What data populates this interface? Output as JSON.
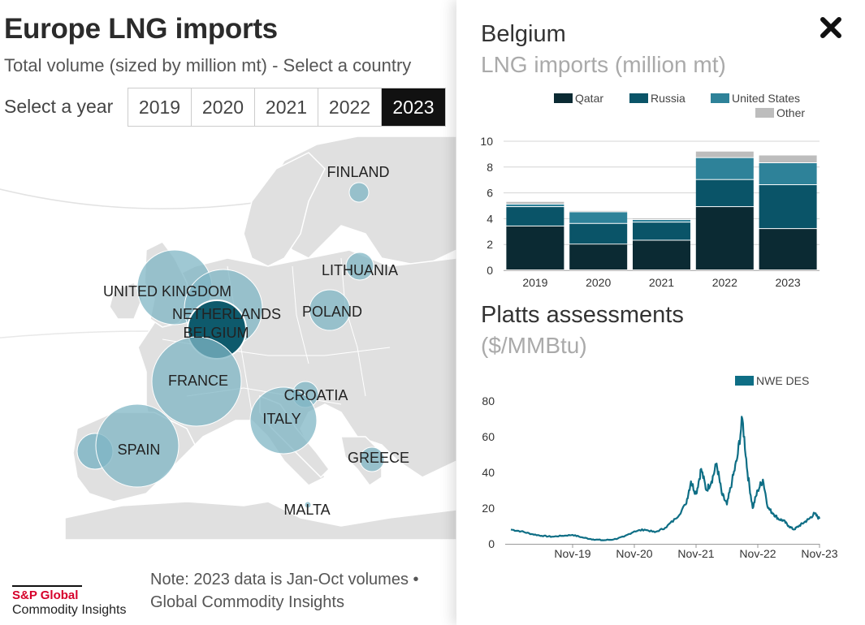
{
  "header": {
    "title": "Europe LNG imports",
    "subtitle": "Total volume (sized by million mt) - Select a country",
    "year_label": "Select a year"
  },
  "years": [
    {
      "label": "2019",
      "active": false
    },
    {
      "label": "2020",
      "active": false
    },
    {
      "label": "2021",
      "active": false
    },
    {
      "label": "2022",
      "active": false
    },
    {
      "label": "2023",
      "active": true
    }
  ],
  "map": {
    "bubble_color": "#7fb5c4",
    "selected_color": "#0e5a6c",
    "countries": [
      {
        "name": "FINLAND",
        "selected": false
      },
      {
        "name": "LITHUANIA",
        "selected": false
      },
      {
        "name": "UNITED KINGDOM",
        "selected": false
      },
      {
        "name": "NETHERLANDS",
        "selected": false
      },
      {
        "name": "POLAND",
        "selected": false
      },
      {
        "name": "BELGIUM",
        "selected": true
      },
      {
        "name": "FRANCE",
        "selected": false
      },
      {
        "name": "CROATIA",
        "selected": false
      },
      {
        "name": "ITALY",
        "selected": false
      },
      {
        "name": "SPAIN",
        "selected": false
      },
      {
        "name": "GREECE",
        "selected": false
      },
      {
        "name": "MALTA",
        "selected": false
      }
    ]
  },
  "footer": {
    "note_line1": "Note: 2023 data is Jan-Oct volumes •",
    "note_line2": "Global Commodity Insights",
    "logo_brand": "S&P Global",
    "logo_sub": "Commodity Insights"
  },
  "panel": {
    "country": "Belgium",
    "subtitle": "LNG imports (million mt)",
    "close_icon": "close-icon",
    "platts_title": "Platts assessments",
    "platts_sub": "($/MMBtu)"
  },
  "chart_data": [
    {
      "type": "bar",
      "stacked": true,
      "title": "LNG imports (million mt)",
      "categories": [
        "2019",
        "2020",
        "2021",
        "2022",
        "2023"
      ],
      "series": [
        {
          "name": "Qatar",
          "color": "#0b2a33",
          "values": [
            3.4,
            2.0,
            2.3,
            4.9,
            3.2
          ]
        },
        {
          "name": "Russia",
          "color": "#0a5468",
          "values": [
            1.5,
            1.6,
            1.4,
            2.1,
            3.4
          ]
        },
        {
          "name": "United States",
          "color": "#2e8299",
          "values": [
            0.2,
            0.9,
            0.2,
            1.7,
            1.7
          ]
        },
        {
          "name": "Other",
          "color": "#bdbdbd",
          "values": [
            0.2,
            0.1,
            0.1,
            0.5,
            0.6
          ]
        }
      ],
      "ylim": [
        0,
        10
      ],
      "yticks": [
        0,
        2,
        4,
        6,
        8,
        10
      ],
      "legend": "top-right"
    },
    {
      "type": "line",
      "title": "Platts assessments ($/MMBtu)",
      "series": [
        {
          "name": "NWE DES",
          "color": "#0e6e85",
          "x": [
            "2018-11",
            "2019-01",
            "2019-03",
            "2019-05",
            "2019-07",
            "2019-09",
            "2019-11",
            "2020-01",
            "2020-03",
            "2020-05",
            "2020-07",
            "2020-09",
            "2020-11",
            "2021-01",
            "2021-03",
            "2021-05",
            "2021-07",
            "2021-09",
            "2021-10",
            "2021-11",
            "2021-12",
            "2022-01",
            "2022-02",
            "2022-03",
            "2022-04",
            "2022-05",
            "2022-06",
            "2022-07",
            "2022-08",
            "2022-09",
            "2022-10",
            "2022-11",
            "2022-12",
            "2023-01",
            "2023-02",
            "2023-03",
            "2023-04",
            "2023-05",
            "2023-06",
            "2023-07",
            "2023-08",
            "2023-09",
            "2023-10",
            "2023-11"
          ],
          "y": [
            8,
            7,
            5.5,
            4.5,
            4,
            4.5,
            5,
            3.5,
            2.5,
            2,
            2.5,
            4,
            7,
            8,
            6.5,
            9,
            14,
            22,
            35,
            28,
            42,
            30,
            35,
            45,
            28,
            22,
            35,
            48,
            70,
            40,
            20,
            30,
            36,
            20,
            17,
            14,
            13,
            10,
            8,
            10,
            12,
            14,
            17,
            14
          ]
        }
      ],
      "ylim": [
        0,
        80
      ],
      "yticks": [
        0,
        20,
        40,
        60,
        80
      ],
      "xticks": [
        "Nov-19",
        "Nov-20",
        "Nov-21",
        "Nov-22",
        "Nov-23"
      ],
      "legend": "top-right"
    }
  ]
}
